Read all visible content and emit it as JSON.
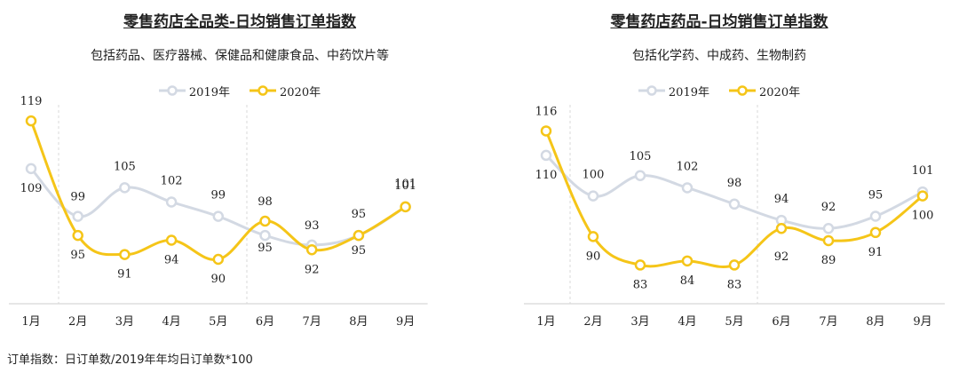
{
  "colors": {
    "y2019": "#d3d9e3",
    "y2020": "#f5c518"
  },
  "footnote": "订单指数：日订单数/2019年年均日订单数*100",
  "chart_data": [
    {
      "type": "line",
      "title": "零售药店全品类-日均销售订单指数",
      "subtitle": "包括药品、医疗器械、保健品和健康食品、中药饮片等",
      "categories": [
        "1月",
        "2月",
        "3月",
        "4月",
        "5月",
        "6月",
        "7月",
        "8月",
        "9月"
      ],
      "series": [
        {
          "name": "2019年",
          "values": [
            109,
            99,
            105,
            102,
            99,
            95,
            93,
            95,
            101
          ]
        },
        {
          "name": "2020年",
          "values": [
            119,
            95,
            91,
            94,
            90,
            98,
            92,
            95,
            101
          ]
        }
      ],
      "ylim": [
        82,
        122
      ],
      "grid": false,
      "legend": "top-center"
    },
    {
      "type": "line",
      "title": "零售药店药品-日均销售订单指数",
      "subtitle": "包括化学药、中成药、生物制药",
      "categories": [
        "1月",
        "2月",
        "3月",
        "4月",
        "5月",
        "6月",
        "7月",
        "8月",
        "9月"
      ],
      "series": [
        {
          "name": "2019年",
          "values": [
            110,
            100,
            105,
            102,
            98,
            94,
            92,
            95,
            101
          ]
        },
        {
          "name": "2020年",
          "values": [
            116,
            90,
            83,
            84,
            83,
            92,
            89,
            91,
            100
          ]
        }
      ],
      "ylim": [
        75,
        122
      ],
      "grid": false,
      "legend": "top-center"
    }
  ]
}
